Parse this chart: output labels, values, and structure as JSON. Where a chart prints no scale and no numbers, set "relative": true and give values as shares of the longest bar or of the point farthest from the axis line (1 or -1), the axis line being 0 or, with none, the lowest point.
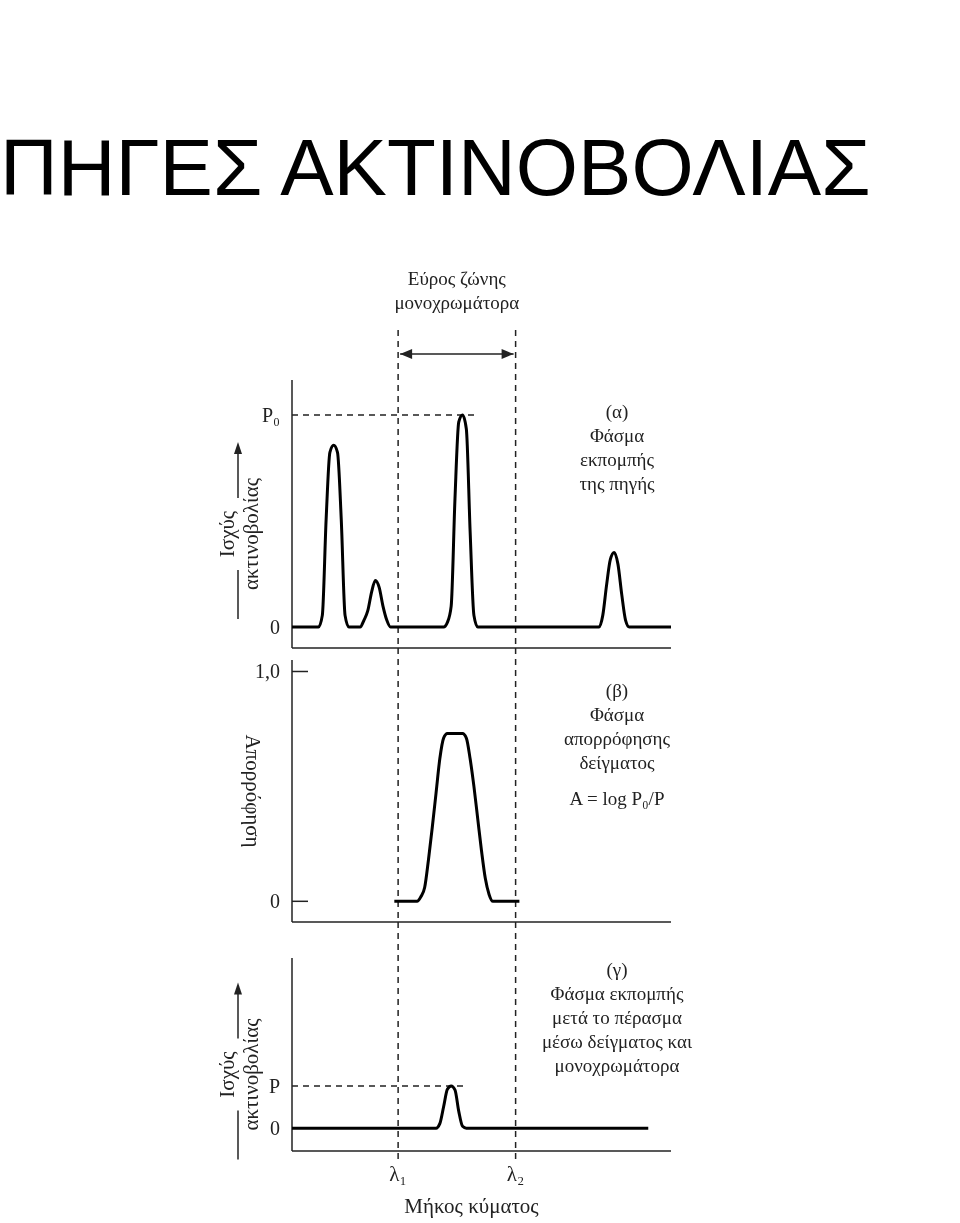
{
  "chart_data": [
    {
      "type": "line",
      "title": "ΠΗΓΕΣ ΑΚΤΙΝΟΒΟΛΙΑΣ",
      "ylabel": "Ισχύς\nακτινοβολίας",
      "relative": true,
      "tick_labels": false,
      "annotations": [
        "Εύρος ζώνης\nμονοχρωμάτορα",
        "(α)\nΦάσμα\nεκπομπής\nτης πηγής",
        "0"
      ],
      "categories": [
        null,
        null,
        null,
        null,
        null,
        null,
        null,
        null,
        null,
        null,
        null,
        null,
        null,
        null,
        null,
        null,
        null,
        null,
        null,
        null,
        null,
        null,
        null,
        null,
        null,
        null,
        null,
        null,
        "λ₁",
        null,
        null,
        null,
        null,
        null,
        null,
        null,
        null,
        null,
        null,
        null,
        null,
        null,
        null,
        null,
        null,
        null,
        null,
        null,
        null,
        null,
        null,
        null,
        null,
        null,
        null,
        null,
        null,
        null,
        null,
        "λ₂",
        null,
        null,
        null,
        null,
        null,
        null,
        null,
        null,
        null,
        null,
        null,
        null,
        null,
        null,
        null,
        null,
        null,
        null,
        null,
        null,
        null,
        null,
        null,
        null,
        null,
        null,
        null,
        null,
        null,
        null,
        null,
        null,
        null,
        null,
        null,
        null,
        null,
        null,
        null,
        null,
        null
      ],
      "values": [
        0.09,
        0.09,
        0.09,
        0.09,
        0.09,
        0.09,
        0.09,
        0.09,
        0.14,
        0.55,
        0.84,
        0.87,
        0.84,
        0.55,
        0.14,
        0.09,
        0.09,
        0.09,
        0.09,
        0.12,
        0.16,
        0.24,
        0.29,
        0.26,
        0.18,
        0.12,
        0.09,
        0.09,
        0.09,
        0.09,
        0.09,
        0.09,
        0.09,
        0.09,
        0.09,
        0.09,
        0.09,
        0.09,
        0.09,
        0.09,
        0.09,
        0.11,
        0.18,
        0.64,
        0.97,
        1,
        0.94,
        0.5,
        0.14,
        0.09,
        0.09,
        0.09,
        0.09,
        0.09,
        0.09,
        0.09,
        0.09,
        0.09,
        0.09,
        0.09,
        0.09,
        0.09,
        0.09,
        0.09,
        0.09,
        0.09,
        0.09,
        0.09,
        0.09,
        0.09,
        0.09,
        0.09,
        0.09,
        0.09,
        0.09,
        0.09,
        0.09,
        0.09,
        0.09,
        0.09,
        0.09,
        0.09,
        0.14,
        0.27,
        0.38,
        0.41,
        0.36,
        0.23,
        0.12,
        0.09,
        0.09,
        0.09,
        0.09,
        0.09,
        0.09,
        0.09,
        0.09,
        0.09,
        0.09,
        0.09,
        0.09
      ],
      "color": "#000000",
      "ref_lines": [
        {
          "axis": "x",
          "value": "λ₁",
          "line_style": "dashed"
        },
        {
          "axis": "x",
          "value": "λ₂",
          "line_style": "dashed"
        },
        {
          "axis": "y",
          "value": 1,
          "label": "P₀",
          "line_style": "dashed"
        }
      ]
    },
    {
      "type": "line",
      "ylabel": "Απορρόφηση",
      "tick_labels": "y",
      "annotations": [
        "(β)\nΦάσμα\nαπορρόφησης\nδείγματος",
        "A = log P₀/P"
      ],
      "categories": [
        null,
        null,
        null,
        null,
        null,
        null,
        null,
        null,
        null,
        null,
        null,
        null,
        null,
        null,
        null,
        null,
        null,
        null,
        null,
        null,
        null,
        null,
        null,
        null,
        null,
        null,
        null,
        null,
        "λ₁",
        null,
        null,
        null,
        null,
        null,
        null,
        null,
        null,
        null,
        null,
        null,
        null,
        null,
        null,
        null,
        null,
        null,
        null,
        null,
        null,
        null,
        null,
        null,
        null,
        null,
        null,
        null,
        null,
        null,
        null,
        "λ₂",
        null,
        null,
        null,
        null,
        null,
        null,
        null,
        null,
        null,
        null,
        null,
        null,
        null,
        null,
        null,
        null,
        null,
        null,
        null,
        null,
        null,
        null,
        null,
        null,
        null,
        null,
        null,
        null,
        null,
        null,
        null,
        null,
        null,
        null,
        null,
        null,
        null,
        null,
        null,
        null,
        null
      ],
      "values": [
        null,
        null,
        null,
        null,
        null,
        null,
        null,
        null,
        null,
        null,
        null,
        null,
        null,
        null,
        null,
        null,
        null,
        null,
        null,
        null,
        null,
        null,
        null,
        null,
        null,
        null,
        null,
        0,
        0,
        0,
        0,
        0,
        0,
        0,
        0.02,
        0.06,
        0.18,
        0.32,
        0.47,
        0.62,
        0.71,
        0.73,
        0.73,
        0.73,
        0.73,
        0.73,
        0.71,
        0.62,
        0.5,
        0.36,
        0.22,
        0.1,
        0.03,
        0,
        0,
        0,
        0,
        0,
        0,
        0,
        0,
        null,
        null,
        null,
        null,
        null,
        null,
        null,
        null,
        null,
        null,
        null,
        null,
        null,
        null,
        null,
        null,
        null,
        null,
        null,
        null,
        null,
        null,
        null,
        null,
        null,
        null,
        null,
        null,
        null,
        null,
        null,
        null,
        null,
        null,
        null,
        null,
        null,
        null,
        null,
        null
      ],
      "color": "#000000",
      "ylim": [
        -0.09,
        1.05
      ],
      "yticks": [
        0,
        {
          "value": 1,
          "label": "1,0"
        }
      ],
      "ref_lines": [
        {
          "axis": "x",
          "value": "λ₁",
          "line_style": "dashed"
        },
        {
          "axis": "x",
          "value": "λ₂",
          "line_style": "dashed"
        }
      ]
    },
    {
      "type": "line",
      "xlabel": "Μήκος κύματος",
      "ylabel": "Ισχύς\nακτινοβολίας",
      "relative": true,
      "tick_labels": "x",
      "annotations": [
        "(γ)\nΦάσμα εκπομπής\nμετά το πέρασμα\nμέσω δείγματος και\nμονοχρωμάτορα",
        "0"
      ],
      "categories": [
        null,
        null,
        null,
        null,
        null,
        null,
        null,
        null,
        null,
        null,
        null,
        null,
        null,
        null,
        null,
        null,
        null,
        null,
        null,
        null,
        null,
        null,
        null,
        null,
        null,
        null,
        null,
        null,
        "λ₁",
        null,
        null,
        null,
        null,
        null,
        null,
        null,
        null,
        null,
        null,
        null,
        null,
        null,
        null,
        null,
        null,
        null,
        null,
        null,
        null,
        null,
        null,
        null,
        null,
        null,
        null,
        null,
        null,
        null,
        null,
        "λ₂",
        null,
        null,
        null,
        null,
        null,
        null,
        null,
        null,
        null,
        null,
        null,
        null,
        null,
        null,
        null,
        null,
        null,
        null,
        null,
        null,
        null,
        null,
        null,
        null,
        null,
        null,
        null,
        null,
        null,
        null,
        null,
        null,
        null,
        null,
        null,
        null,
        null,
        null,
        null,
        null,
        null
      ],
      "values": [
        0.35,
        0.35,
        0.35,
        0.35,
        0.35,
        0.35,
        0.35,
        0.35,
        0.35,
        0.35,
        0.35,
        0.35,
        0.35,
        0.35,
        0.35,
        0.35,
        0.35,
        0.35,
        0.35,
        0.35,
        0.35,
        0.35,
        0.35,
        0.35,
        0.35,
        0.35,
        0.35,
        0.35,
        0.35,
        0.35,
        0.35,
        0.35,
        0.35,
        0.35,
        0.35,
        0.35,
        0.35,
        0.35,
        0.35,
        0.42,
        0.68,
        0.95,
        1,
        0.94,
        0.61,
        0.38,
        0.35,
        0.35,
        0.35,
        0.35,
        0.35,
        0.35,
        0.35,
        0.35,
        0.35,
        0.35,
        0.35,
        0.35,
        0.35,
        0.35,
        0.35,
        0.35,
        0.35,
        0.35,
        0.35,
        0.35,
        0.35,
        0.35,
        0.35,
        0.35,
        0.35,
        0.35,
        0.35,
        0.35,
        0.35,
        0.35,
        0.35,
        0.35,
        0.35,
        0.35,
        0.35,
        0.35,
        0.35,
        0.35,
        0.35,
        0.35,
        0.35,
        0.35,
        0.35,
        0.35,
        0.35,
        0.35,
        0.35,
        0.35,
        0.35,
        null,
        null,
        null,
        null,
        null,
        null
      ],
      "color": "#000000",
      "ref_lines": [
        {
          "axis": "x",
          "value": "λ₁",
          "line_style": "dashed"
        },
        {
          "axis": "x",
          "value": "λ₂",
          "line_style": "dashed"
        },
        {
          "axis": "y",
          "value": 1,
          "label": "P",
          "line_style": "dashed"
        }
      ]
    }
  ]
}
